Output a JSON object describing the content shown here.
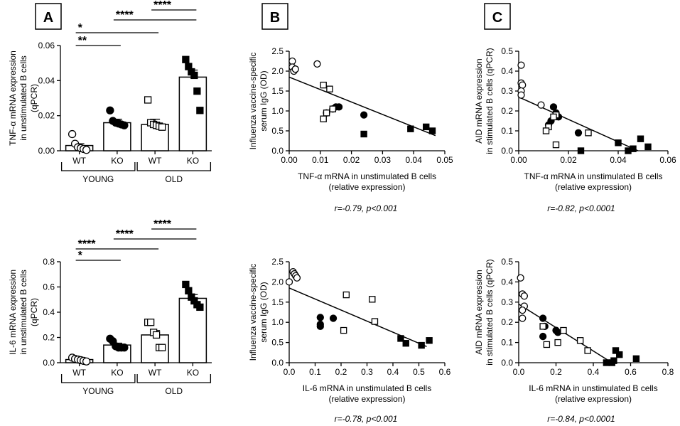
{
  "figure": {
    "stat_labels": {
      "cB1": "r=-0.79, p<0.001",
      "cC1": "r=-0.82, p<0.0001",
      "cB2": "r=-0.78, p<0.001",
      "cC2": "r=-0.84, p<0.0001"
    }
  },
  "chart_data": [
    {
      "id": "A1",
      "panel": "A",
      "type": "bar",
      "ylabel": [
        "TNF-α mRNA expression",
        "in unstimulated B cells",
        "(qPCR)"
      ],
      "ylim": [
        0,
        0.06
      ],
      "yticks": [
        "0.00",
        "0.02",
        "0.04",
        "0.06"
      ],
      "categories": [
        "WT",
        "KO",
        "WT",
        "KO"
      ],
      "groups": [
        "YOUNG",
        "OLD"
      ],
      "means": [
        0.003,
        0.016,
        0.015,
        0.042
      ],
      "sems": [
        0.001,
        0.002,
        0.003,
        0.004
      ],
      "fills": [
        "white",
        "white",
        "white",
        "white"
      ],
      "markers": [
        "circle-open",
        "circle-filled",
        "square-open",
        "square-filled"
      ],
      "points": [
        [
          0.0095,
          0.004,
          0.002,
          0.0015,
          0.001,
          0.0005
        ],
        [
          0.023,
          0.017,
          0.016,
          0.0155,
          0.015,
          0.0145
        ],
        [
          0.029,
          0.016,
          0.015,
          0.0145,
          0.014,
          0.0135
        ],
        [
          0.052,
          0.048,
          0.045,
          0.043,
          0.034,
          0.023
        ]
      ],
      "significance": [
        {
          "label": "**",
          "from": 0,
          "to": 1
        },
        {
          "label": "*",
          "from": 0,
          "to": 2
        },
        {
          "label": "****",
          "from": 1,
          "to": 3
        },
        {
          "label": "****",
          "from": 2,
          "to": 3
        }
      ]
    },
    {
      "id": "A2",
      "type": "bar",
      "ylabel": [
        "IL-6 mRNA expression",
        "in unstimulated B cells",
        "(qPCR)"
      ],
      "ylim": [
        0,
        0.8
      ],
      "yticks": [
        "0.0",
        "0.2",
        "0.4",
        "0.6",
        "0.8"
      ],
      "categories": [
        "WT",
        "KO",
        "WT",
        "KO"
      ],
      "groups": [
        "YOUNG",
        "OLD"
      ],
      "means": [
        0.025,
        0.14,
        0.22,
        0.51
      ],
      "sems": [
        0.005,
        0.015,
        0.035,
        0.03
      ],
      "fills": [
        "white",
        "white",
        "white",
        "white"
      ],
      "markers": [
        "circle-open",
        "circle-filled",
        "square-open",
        "square-filled"
      ],
      "points": [
        [
          0.04,
          0.03,
          0.025,
          0.02,
          0.015,
          0.01
        ],
        [
          0.19,
          0.17,
          0.13,
          0.12,
          0.12,
          0.12
        ],
        [
          0.32,
          0.32,
          0.24,
          0.22,
          0.12,
          0.12
        ],
        [
          0.62,
          0.57,
          0.52,
          0.49,
          0.46,
          0.44
        ]
      ],
      "significance": [
        {
          "label": "*",
          "from": 0,
          "to": 1
        },
        {
          "label": "****",
          "from": 0,
          "to": 2
        },
        {
          "label": "****",
          "from": 1,
          "to": 3
        },
        {
          "label": "****",
          "from": 2,
          "to": 3
        }
      ]
    },
    {
      "id": "B1",
      "panel": "B",
      "type": "scatter",
      "ylabel": [
        "Influenza vaccine-specific",
        "serum IgG (OD)"
      ],
      "xlabel": [
        "TNF-α mRNA in unstimulated B cells",
        "(relative expression)"
      ],
      "xlim": [
        0,
        0.05
      ],
      "ylim": [
        0,
        2.5
      ],
      "xticks": [
        "0.00",
        "0.01",
        "0.02",
        "0.03",
        "0.04",
        "0.05"
      ],
      "yticks": [
        "0.0",
        "0.5",
        "1.0",
        "1.5",
        "2.0",
        "2.5"
      ],
      "fit": {
        "x": [
          0,
          0.047
        ],
        "y": [
          1.85,
          0.38
        ]
      },
      "series": [
        {
          "name": "young-WT",
          "marker": "circle-open",
          "x": [
            0.001,
            0.001,
            0.0015,
            0.009,
            0.002
          ],
          "y": [
            2.25,
            2.1,
            2.0,
            2.18,
            2.05
          ]
        },
        {
          "name": "young-KO",
          "marker": "circle-filled",
          "x": [
            0.012,
            0.014,
            0.015,
            0.016,
            0.024
          ],
          "y": [
            0.95,
            1.05,
            1.1,
            1.1,
            0.9
          ]
        },
        {
          "name": "old-WT",
          "marker": "square-open",
          "x": [
            0.011,
            0.013,
            0.014,
            0.011,
            0.012
          ],
          "y": [
            1.65,
            1.55,
            1.05,
            0.8,
            0.95
          ]
        },
        {
          "name": "old-KO",
          "marker": "square-filled",
          "x": [
            0.024,
            0.039,
            0.044,
            0.046
          ],
          "y": [
            0.42,
            0.55,
            0.6,
            0.5
          ]
        }
      ]
    },
    {
      "id": "C1",
      "panel": "C",
      "type": "scatter",
      "ylabel": [
        "AID mRNA expression",
        "in stimulated B cells (qPCR)"
      ],
      "xlabel": [
        "TNF-α mRNA in unstimulated B cells",
        "(relative expression)"
      ],
      "xlim": [
        0,
        0.06
      ],
      "ylim": [
        0,
        0.5
      ],
      "xticks": [
        "0.00",
        "0.02",
        "0.04",
        "0.06"
      ],
      "yticks": [
        "0.0",
        "0.1",
        "0.2",
        "0.3",
        "0.4",
        "0.5"
      ],
      "fit": {
        "x": [
          0,
          0.048
        ],
        "y": [
          0.27,
          0.0
        ]
      },
      "series": [
        {
          "name": "young-WT",
          "marker": "circle-open",
          "x": [
            0.001,
            0.001,
            0.0015,
            0.001,
            0.001,
            0.009
          ],
          "y": [
            0.43,
            0.34,
            0.33,
            0.3,
            0.28,
            0.23
          ]
        },
        {
          "name": "young-KO",
          "marker": "circle-filled",
          "x": [
            0.014,
            0.015,
            0.016,
            0.013,
            0.012,
            0.024
          ],
          "y": [
            0.22,
            0.19,
            0.17,
            0.15,
            0.13,
            0.09
          ]
        },
        {
          "name": "old-WT",
          "marker": "square-open",
          "x": [
            0.015,
            0.014,
            0.012,
            0.011,
            0.015,
            0.028
          ],
          "y": [
            0.18,
            0.17,
            0.12,
            0.1,
            0.03,
            0.09
          ]
        },
        {
          "name": "old-KO",
          "marker": "square-filled",
          "x": [
            0.025,
            0.04,
            0.044,
            0.046,
            0.049,
            0.052
          ],
          "y": [
            0.0,
            0.04,
            0.0,
            0.01,
            0.06,
            0.02
          ]
        }
      ]
    },
    {
      "id": "B2",
      "type": "scatter",
      "ylabel": [
        "Influenza vaccine-specific",
        "serum IgG (OD)"
      ],
      "xlabel": [
        "IL-6 mRNA in unstimulated B cells",
        "(relative expression)"
      ],
      "xlim": [
        0,
        0.6
      ],
      "ylim": [
        0,
        2.5
      ],
      "xticks": [
        "0.0",
        "0.1",
        "0.2",
        "0.3",
        "0.4",
        "0.5",
        "0.6"
      ],
      "yticks": [
        "0.0",
        "0.5",
        "1.0",
        "1.5",
        "2.0",
        "2.5"
      ],
      "fit": {
        "x": [
          0,
          0.53
        ],
        "y": [
          1.85,
          0.4
        ]
      },
      "series": [
        {
          "name": "young-WT",
          "marker": "circle-open",
          "x": [
            0.015,
            0.02,
            0.025,
            0.03,
            0.0
          ],
          "y": [
            2.25,
            2.2,
            2.15,
            2.1,
            2.0
          ]
        },
        {
          "name": "young-KO",
          "marker": "circle-filled",
          "x": [
            0.12,
            0.12,
            0.12,
            0.17
          ],
          "y": [
            1.12,
            0.95,
            0.9,
            1.1
          ]
        },
        {
          "name": "old-WT",
          "marker": "square-open",
          "x": [
            0.22,
            0.21,
            0.32,
            0.33
          ],
          "y": [
            1.68,
            0.8,
            1.57,
            1.02
          ]
        },
        {
          "name": "old-KO",
          "marker": "square-filled",
          "x": [
            0.43,
            0.45,
            0.51,
            0.54
          ],
          "y": [
            0.6,
            0.48,
            0.43,
            0.55
          ]
        }
      ]
    },
    {
      "id": "C2",
      "type": "scatter",
      "ylabel": [
        "AID mRNA expression",
        "in stimulated B cells (qPCR)"
      ],
      "xlabel": [
        "IL-6 mRNA in unstimulated B cells",
        "(relative expression)"
      ],
      "xlim": [
        0,
        0.8
      ],
      "ylim": [
        0,
        0.5
      ],
      "xticks": [
        "0.0",
        "0.2",
        "0.4",
        "0.6",
        "0.8"
      ],
      "yticks": [
        "0.0",
        "0.1",
        "0.2",
        "0.3",
        "0.4",
        "0.5"
      ],
      "fit": {
        "x": [
          0,
          0.5
        ],
        "y": [
          0.29,
          0.0
        ]
      },
      "series": [
        {
          "name": "young-WT",
          "marker": "circle-open",
          "x": [
            0.01,
            0.02,
            0.03,
            0.03,
            0.02,
            0.02
          ],
          "y": [
            0.42,
            0.34,
            0.33,
            0.28,
            0.26,
            0.22
          ]
        },
        {
          "name": "young-KO",
          "marker": "circle-filled",
          "x": [
            0.13,
            0.14,
            0.2,
            0.21,
            0.13
          ],
          "y": [
            0.22,
            0.18,
            0.16,
            0.15,
            0.13
          ]
        },
        {
          "name": "old-WT",
          "marker": "square-open",
          "x": [
            0.13,
            0.24,
            0.33,
            0.21,
            0.37,
            0.15
          ],
          "y": [
            0.18,
            0.16,
            0.11,
            0.1,
            0.06,
            0.09
          ]
        },
        {
          "name": "old-KO",
          "marker": "square-filled",
          "x": [
            0.47,
            0.51,
            0.52,
            0.54,
            0.63,
            0.5
          ],
          "y": [
            0.0,
            0.01,
            0.06,
            0.04,
            0.02,
            0.0
          ]
        }
      ]
    }
  ]
}
